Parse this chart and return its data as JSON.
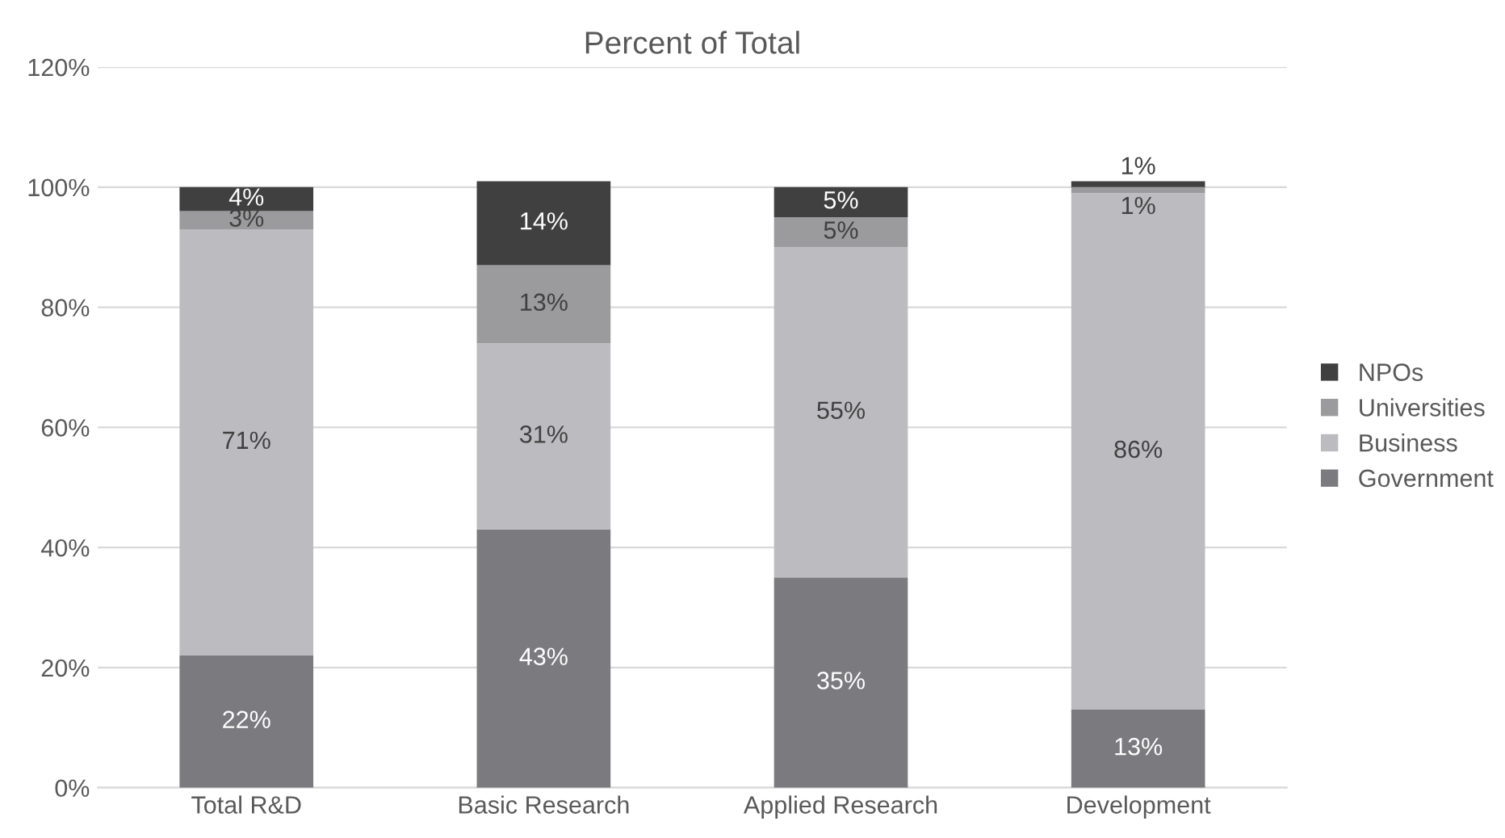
{
  "chart_data": {
    "type": "bar",
    "stacked": true,
    "title": "Percent of Total",
    "categories": [
      "Total R&D",
      "Basic Research",
      "Applied Research",
      "Development"
    ],
    "series": [
      {
        "name": "Government",
        "color": "#7b7b7f",
        "values": [
          22,
          43,
          35,
          13
        ],
        "value_labels": [
          "22%",
          "43%",
          "35%",
          "13%"
        ]
      },
      {
        "name": "Business",
        "color": "#bcbcc0",
        "values": [
          71,
          31,
          55,
          86
        ],
        "value_labels": [
          "71%",
          "31%",
          "55%",
          "86%"
        ]
      },
      {
        "name": "Universities",
        "color": "#9b9b9d",
        "values": [
          3,
          13,
          5,
          1
        ],
        "value_labels": [
          "3%",
          "13%",
          "5%",
          "1%"
        ]
      },
      {
        "name": "NPOs",
        "color": "#404040",
        "values": [
          4,
          14,
          5,
          1
        ],
        "value_labels": [
          "4%",
          "14%",
          "5%",
          "1%"
        ]
      }
    ],
    "ylim": [
      0,
      120
    ],
    "yticks": [
      {
        "value": 0,
        "label": "0%"
      },
      {
        "value": 20,
        "label": "20%"
      },
      {
        "value": 40,
        "label": "40%"
      },
      {
        "value": 60,
        "label": "60%"
      },
      {
        "value": 80,
        "label": "80%"
      },
      {
        "value": 100,
        "label": "100%"
      },
      {
        "value": 120,
        "label": "120%"
      }
    ],
    "grid": "y",
    "legend": "right"
  }
}
